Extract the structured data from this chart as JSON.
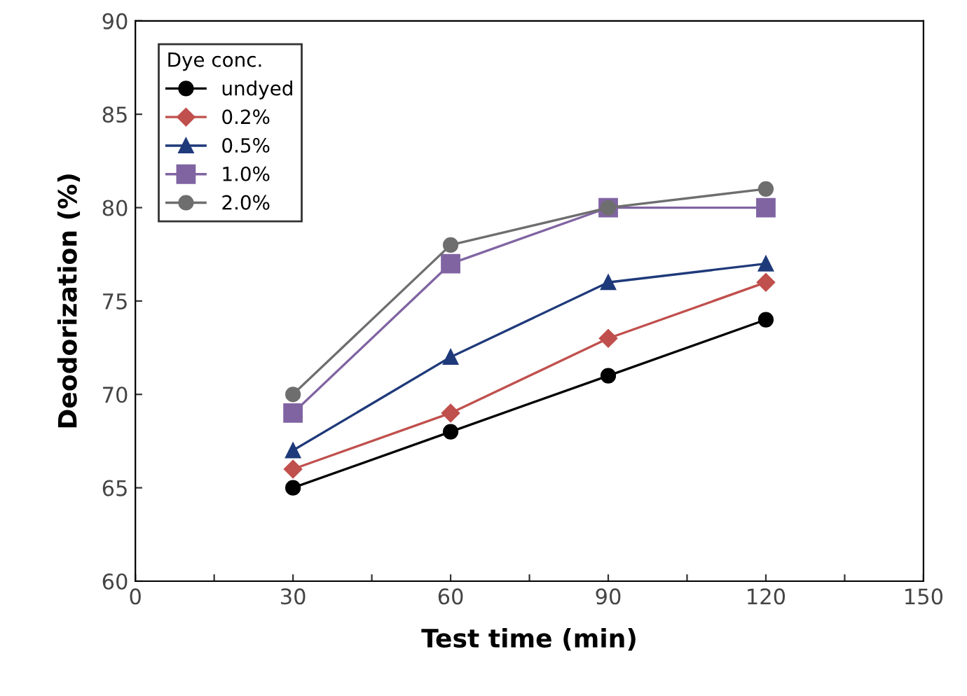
{
  "chart_data": {
    "type": "line",
    "xlabel": "Test time (min)",
    "ylabel": "Deodorization (%)",
    "legend_title": "Dye conc.",
    "legend": "top left",
    "grid": false,
    "x": [
      30,
      60,
      90,
      120
    ],
    "xlim": [
      0,
      150
    ],
    "xticks": [
      0,
      {
        "value": 15,
        "label": null
      },
      30,
      {
        "value": 45,
        "label": null
      },
      60,
      {
        "value": 75,
        "label": null
      },
      90,
      {
        "value": 105,
        "label": null
      },
      120,
      {
        "value": 135,
        "label": null
      },
      150
    ],
    "ylim": [
      60,
      90
    ],
    "yticks": [
      60,
      65,
      70,
      75,
      80,
      85,
      90
    ],
    "series": [
      {
        "name": "undyed",
        "color": "#000000",
        "marker": "circle",
        "values": [
          65,
          68,
          71,
          74
        ]
      },
      {
        "name": "0.2%",
        "color": "#c0504d",
        "marker": "diamond",
        "values": [
          66,
          69,
          73,
          76
        ]
      },
      {
        "name": "0.5%",
        "color": "#1f3a7a",
        "marker": "triangle",
        "values": [
          67,
          72,
          76,
          77
        ]
      },
      {
        "name": "1.0%",
        "color": "#8064a2",
        "marker": "square",
        "values": [
          69,
          77,
          80,
          80
        ]
      },
      {
        "name": "2.0%",
        "color": "#6e6e6e",
        "marker": "circle",
        "values": [
          70,
          78,
          80,
          81
        ]
      }
    ]
  }
}
